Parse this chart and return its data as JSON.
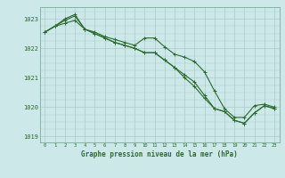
{
  "title": "Graphe pression niveau de la mer (hPa)",
  "background_color": "#cce8e8",
  "grid_color": "#aacccc",
  "line_color": "#2d6a2d",
  "x_values": [
    0,
    1,
    2,
    3,
    4,
    5,
    6,
    7,
    8,
    9,
    10,
    11,
    12,
    13,
    14,
    15,
    16,
    17,
    18,
    19,
    20,
    21,
    22,
    23
  ],
  "line1": [
    1022.55,
    1022.75,
    1022.95,
    1023.1,
    1022.65,
    1022.55,
    1022.4,
    1022.3,
    1022.2,
    1022.1,
    1022.35,
    1022.35,
    1022.05,
    1021.8,
    1021.7,
    1021.55,
    1021.2,
    1020.55,
    1019.95,
    1019.65,
    1019.65,
    1020.05,
    1020.1,
    1020.0
  ],
  "line2": [
    1022.55,
    1022.75,
    1022.85,
    1022.95,
    1022.65,
    1022.5,
    1022.35,
    1022.2,
    1022.1,
    1022.0,
    1021.85,
    1021.85,
    1021.6,
    1021.35,
    1021.1,
    1020.85,
    1020.4,
    1019.95,
    1019.85,
    1019.55,
    1019.45,
    1019.8,
    1020.05,
    1019.95
  ],
  "line3": [
    1022.55,
    1022.75,
    1023.0,
    1023.15,
    1022.65,
    1022.5,
    1022.35,
    1022.2,
    1022.1,
    1022.0,
    1021.85,
    1021.85,
    1021.6,
    1021.35,
    1021.0,
    1020.7,
    1020.3,
    1019.95,
    1019.85,
    1019.55,
    1019.45,
    1019.8,
    1020.05,
    1019.95
  ],
  "ylim": [
    1018.8,
    1023.4
  ],
  "yticks": [
    1019,
    1020,
    1021,
    1022,
    1023
  ],
  "xlim": [
    -0.5,
    23.5
  ],
  "figsize": [
    3.2,
    2.0
  ],
  "dpi": 100
}
